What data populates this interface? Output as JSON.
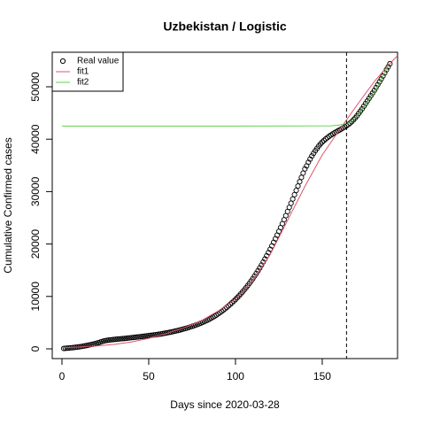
{
  "chart_data": {
    "type": "scatter",
    "title": "Uzbekistan / Logistic",
    "xlabel": "Days since 2020-03-28",
    "ylabel": "Cumulative Confirmed cases",
    "xlim": [
      -5.6,
      193.4
    ],
    "ylim": [
      -1860,
      56590
    ],
    "xticks": [
      0,
      50,
      100,
      150
    ],
    "yticks": [
      0,
      10000,
      20000,
      30000,
      40000,
      50000
    ],
    "vline": 164,
    "legend": "topleft",
    "series": [
      {
        "name": "Real value",
        "type": "scatter",
        "color": "#000000",
        "x": [
          1,
          2,
          3,
          4,
          5,
          6,
          7,
          8,
          9,
          10,
          11,
          12,
          13,
          14,
          15,
          16,
          17,
          18,
          19,
          20,
          21,
          22,
          23,
          24,
          25,
          26,
          27,
          28,
          29,
          30,
          31,
          32,
          33,
          34,
          35,
          36,
          37,
          38,
          39,
          40,
          41,
          42,
          43,
          44,
          45,
          46,
          47,
          48,
          49,
          50,
          51,
          52,
          53,
          54,
          55,
          56,
          57,
          58,
          59,
          60,
          61,
          62,
          63,
          64,
          65,
          66,
          67,
          68,
          69,
          70,
          71,
          72,
          73,
          74,
          75,
          76,
          77,
          78,
          79,
          80,
          81,
          82,
          83,
          84,
          85,
          86,
          87,
          88,
          89,
          90,
          91,
          92,
          93,
          94,
          95,
          96,
          97,
          98,
          99,
          100,
          101,
          102,
          103,
          104,
          105,
          106,
          107,
          108,
          109,
          110,
          111,
          112,
          113,
          114,
          115,
          116,
          117,
          118,
          119,
          120,
          121,
          122,
          123,
          124,
          125,
          126,
          127,
          128,
          129,
          130,
          131,
          132,
          133,
          134,
          135,
          136,
          137,
          138,
          139,
          140,
          141,
          142,
          143,
          144,
          145,
          146,
          147,
          148,
          149,
          150,
          151,
          152,
          153,
          154,
          155,
          156,
          157,
          158,
          159,
          160,
          161,
          162,
          163,
          164,
          165,
          166,
          167,
          168,
          169,
          170,
          171,
          172,
          173,
          174,
          175,
          176,
          177,
          178,
          179,
          180,
          181,
          182,
          183,
          184,
          185,
          186,
          187,
          188,
          189
        ],
        "values": [
          80,
          100,
          130,
          160,
          190,
          220,
          260,
          300,
          340,
          390,
          440,
          500,
          560,
          620,
          690,
          760,
          830,
          900,
          980,
          1070,
          1170,
          1280,
          1390,
          1480,
          1560,
          1620,
          1670,
          1710,
          1750,
          1790,
          1830,
          1860,
          1890,
          1920,
          1950,
          1980,
          2010,
          2050,
          2090,
          2130,
          2170,
          2200,
          2240,
          2280,
          2320,
          2360,
          2400,
          2440,
          2480,
          2520,
          2560,
          2600,
          2640,
          2690,
          2740,
          2790,
          2840,
          2900,
          2960,
          3020,
          3080,
          3150,
          3220,
          3290,
          3360,
          3440,
          3520,
          3600,
          3690,
          3780,
          3870,
          3970,
          4070,
          4180,
          4290,
          4400,
          4520,
          4640,
          4770,
          4900,
          5040,
          5190,
          5340,
          5500,
          5670,
          5850,
          6040,
          6240,
          6450,
          6670,
          6900,
          7140,
          7390,
          7650,
          7920,
          8200,
          8490,
          8790,
          9100,
          9420,
          9760,
          10110,
          10470,
          10840,
          11230,
          11630,
          12050,
          12480,
          12930,
          13400,
          13890,
          14390,
          14910,
          15450,
          16000,
          16570,
          17150,
          17750,
          18370,
          19000,
          19650,
          20320,
          21000,
          21700,
          22410,
          23140,
          23880,
          24640,
          25410,
          26190,
          26980,
          27780,
          28590,
          29410,
          30230,
          31060,
          31890,
          32710,
          33530,
          34330,
          34900,
          35600,
          36200,
          36800,
          37300,
          37800,
          38250,
          38700,
          39100,
          39450,
          39750,
          40050,
          40300,
          40550,
          40780,
          41000,
          41200,
          41400,
          41580,
          41760,
          41950,
          42150,
          42350,
          42550,
          42800,
          43050,
          43350,
          43700,
          44050,
          44450,
          44900,
          45350,
          45800,
          46300,
          46800,
          47300,
          47800,
          48300,
          48800,
          49300,
          49850,
          50400,
          50950,
          51500,
          52050,
          52650,
          53250,
          53800,
          54400
        ]
      },
      {
        "name": "fit1",
        "type": "line",
        "color": "#DF536B",
        "x": [
          0,
          10,
          20,
          30,
          40,
          50,
          60,
          70,
          80,
          90,
          100,
          110,
          120,
          130,
          140,
          150,
          160,
          170,
          180,
          190,
          193
        ],
        "values": [
          200,
          350,
          550,
          850,
          1300,
          2000,
          2900,
          4000,
          5300,
          7200,
          9500,
          13000,
          18000,
          24500,
          31000,
          37000,
          41800,
          46500,
          51000,
          54800,
          55800
        ]
      },
      {
        "name": "fit2",
        "type": "line",
        "color": "#61D04F",
        "x": [
          0,
          100,
          155,
          160,
          165,
          170,
          180,
          188
        ],
        "values": [
          42500,
          42500,
          42550,
          42700,
          43100,
          44300,
          48800,
          54000
        ]
      }
    ]
  }
}
